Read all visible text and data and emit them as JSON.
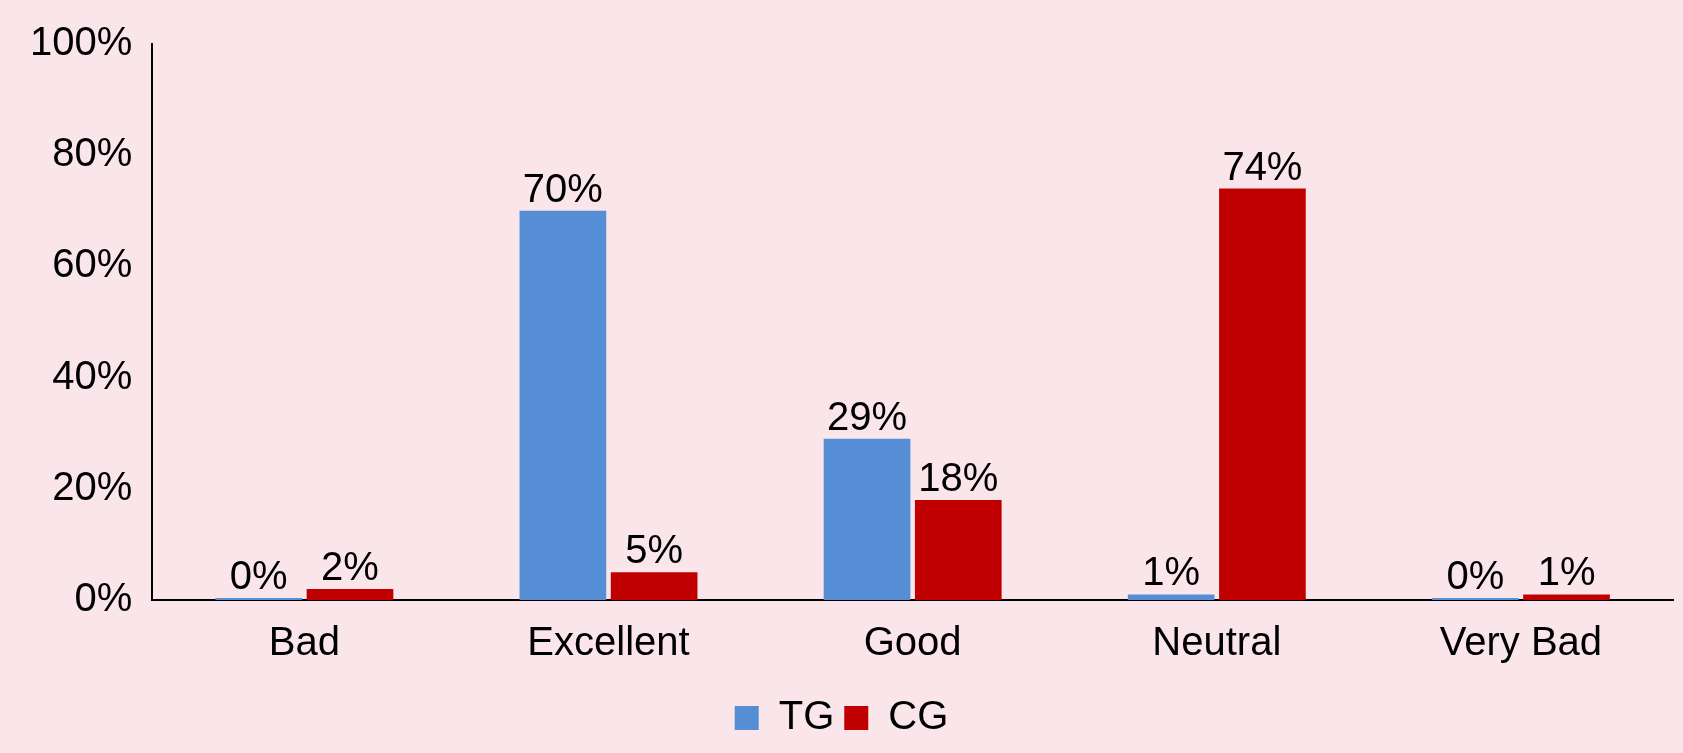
{
  "chart_data": {
    "type": "bar",
    "categories": [
      "Bad",
      "Excellent",
      "Good",
      "Neutral",
      "Very Bad"
    ],
    "series": [
      {
        "name": "TG",
        "color": "#558ed5",
        "values": [
          0,
          70,
          29,
          1,
          0
        ],
        "value_labels": [
          "0%",
          "70%",
          "29%",
          "1%",
          "0%"
        ]
      },
      {
        "name": "CG",
        "color": "#c00000",
        "values": [
          2,
          5,
          18,
          74,
          1
        ],
        "value_labels": [
          "2%",
          "5%",
          "18%",
          "74%",
          "1%"
        ]
      }
    ],
    "ylim": [
      0,
      100
    ],
    "yticks": [
      {
        "value": 0,
        "label": "0%"
      },
      {
        "value": 20,
        "label": "20%"
      },
      {
        "value": 40,
        "label": "40%"
      },
      {
        "value": 60,
        "label": "60%"
      },
      {
        "value": 80,
        "label": "80%"
      },
      {
        "value": 100,
        "label": "100%"
      }
    ],
    "grid": false,
    "legend": "bottom"
  }
}
